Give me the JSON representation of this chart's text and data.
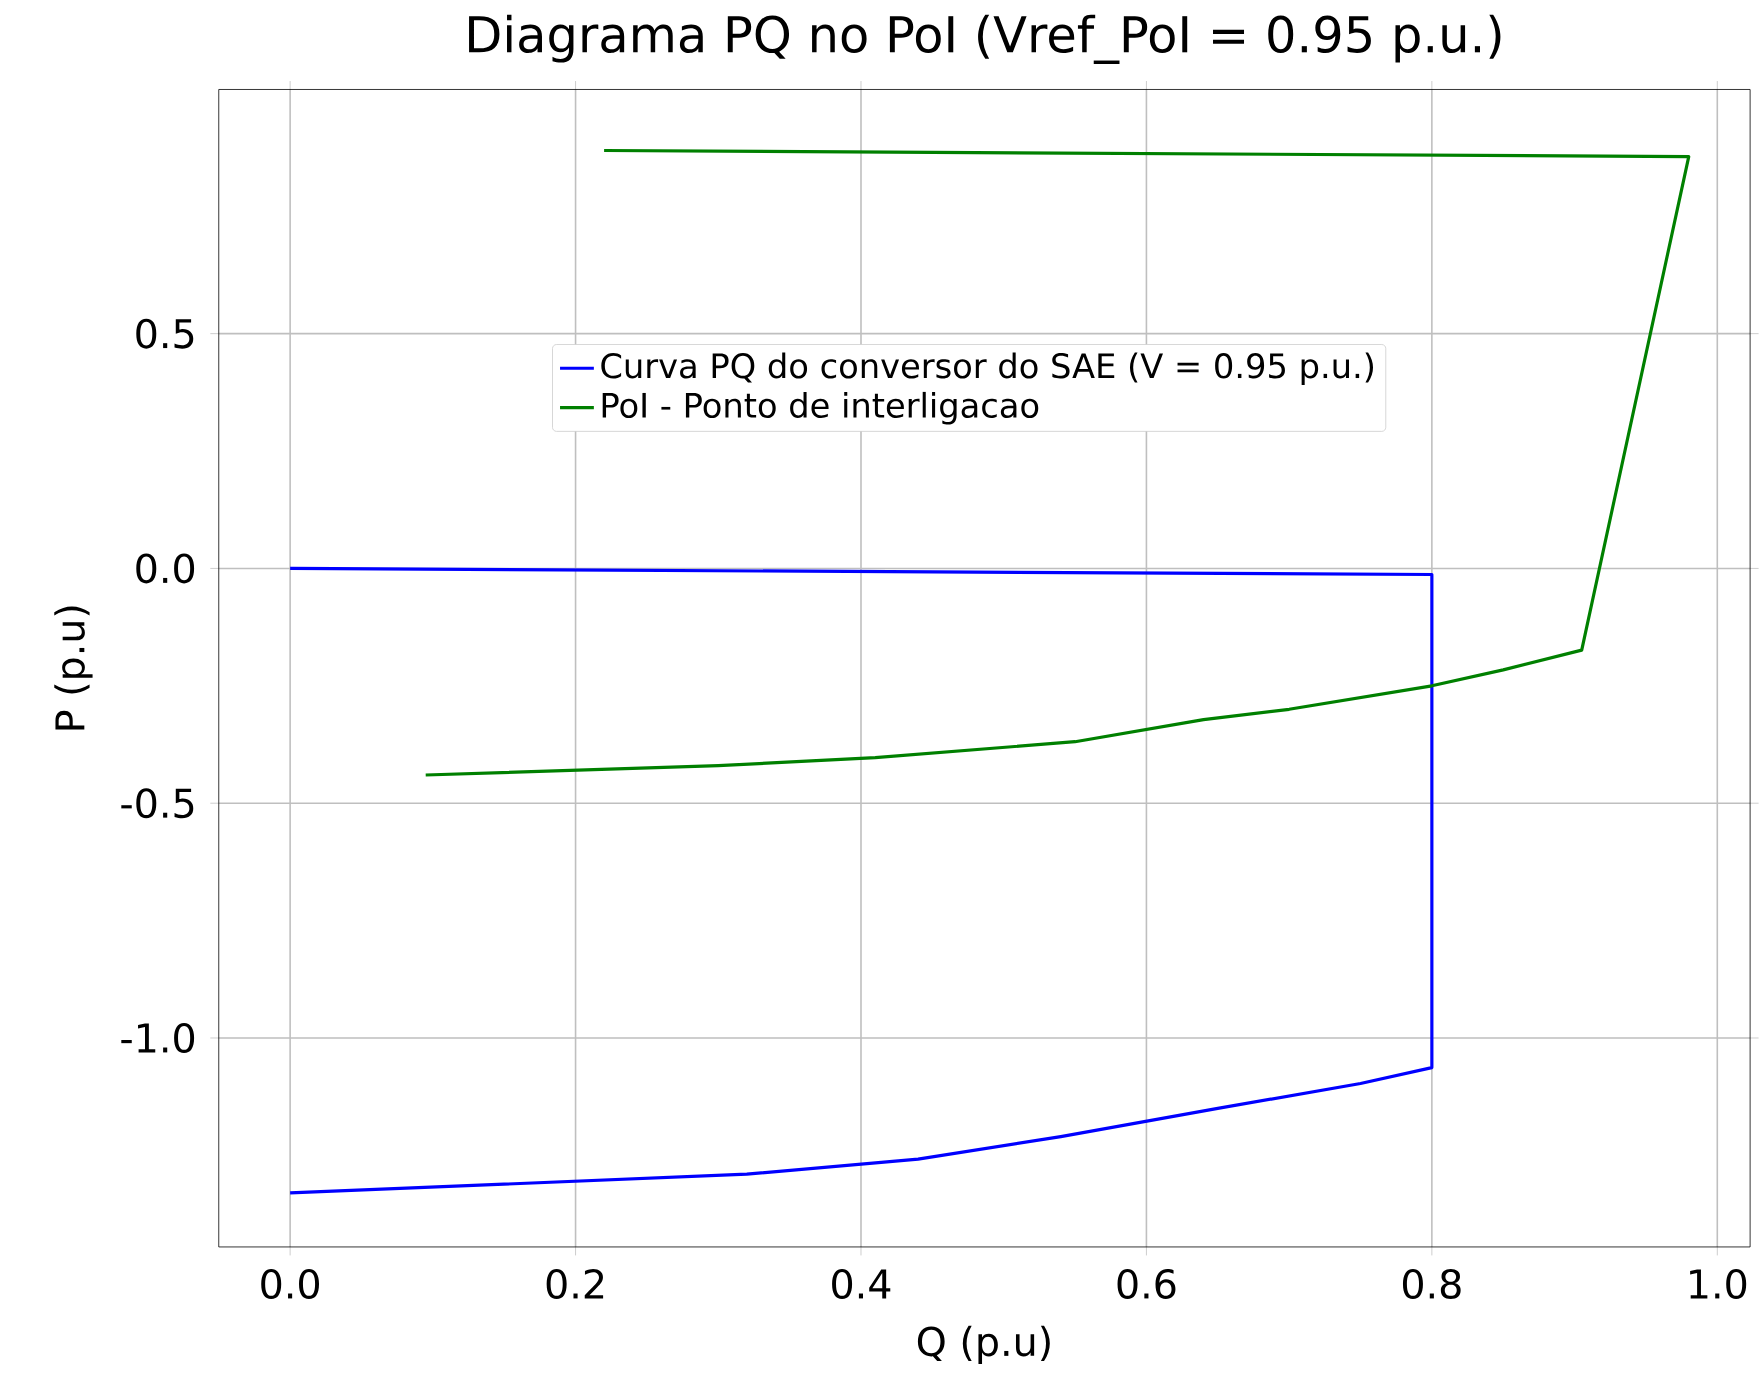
{
  "chart_data": {
    "type": "line",
    "title": "Diagrama PQ no PoI (Vref_PoI = 0.95 p.u.)",
    "xlabel": "Q (p.u)",
    "ylabel": "P (p.u)",
    "xlim": [
      -0.05,
      1.023
    ],
    "ylim": [
      -1.445,
      1.02
    ],
    "xticks": [
      {
        "value": 0,
        "label": "0.0"
      },
      0.2,
      0.4,
      0.6,
      0.8,
      {
        "value": 1,
        "label": "1.0"
      }
    ],
    "yticks": [
      {
        "value": -1,
        "label": "-1.0"
      },
      -0.5,
      {
        "value": 0,
        "label": "0.0"
      },
      0.5
    ],
    "grid": true,
    "legend": "top",
    "marker": "none",
    "line_style": "solid",
    "series": [
      {
        "name": "Curva PQ do conversor do SAE (V = 0.95 p.u.)",
        "color": "#0000ff",
        "x": [
          0.0,
          0.8,
          0.8,
          0.75,
          0.65,
          0.54,
          0.44,
          0.32,
          0.0
        ],
        "values": [
          0.0,
          -0.013,
          -1.063,
          -1.097,
          -1.15,
          -1.21,
          -1.258,
          -1.29,
          -1.33
        ]
      },
      {
        "name": "PoI - Ponto de interligacao",
        "color": "#008000",
        "x": [
          0.22,
          0.98,
          0.905,
          0.85,
          0.8,
          0.7,
          0.64,
          0.55,
          0.41,
          0.3,
          0.095
        ],
        "values": [
          0.89,
          0.877,
          -0.174,
          -0.216,
          -0.25,
          -0.3,
          -0.322,
          -0.369,
          -0.403,
          -0.42,
          -0.44
        ]
      }
    ]
  }
}
